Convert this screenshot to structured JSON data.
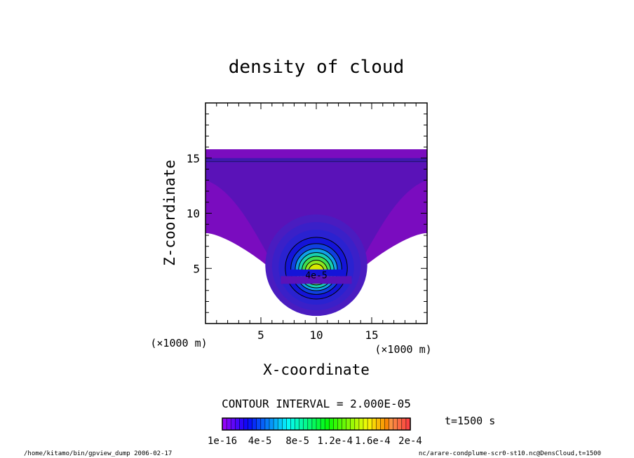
{
  "chart_data": {
    "type": "heatmap",
    "title": "density of cloud",
    "xlabel": "X-coordinate",
    "ylabel": "Z-coordinate",
    "x_unit": "(×1000 m)",
    "y_unit": "(×1000 m)",
    "xlim": [
      0,
      20
    ],
    "ylim": [
      0,
      20
    ],
    "x_ticks": [
      5,
      10,
      15
    ],
    "y_ticks": [
      5,
      10,
      15
    ],
    "contour_interval": "CONTOUR INTERVAL = 2.000E-05",
    "contour_label": "4e-5",
    "time_label": "t=1500 s",
    "colorbar_labels": [
      "1e-16",
      "4e-5",
      "8e-5",
      "1.2e-4",
      "1.6e-4",
      "2e-4"
    ],
    "colorbar_range": [
      0,
      0.0002
    ],
    "footer_left": "/home/kitamo/bin/gpview_dump  2006-02-17",
    "footer_right": "nc/arare-condplume-scr0-st10.nc@DensCloud,t=1500",
    "colors": {
      "low": "#5a12b8",
      "mid": "#1414d8",
      "peak": "#d8e800"
    }
  }
}
